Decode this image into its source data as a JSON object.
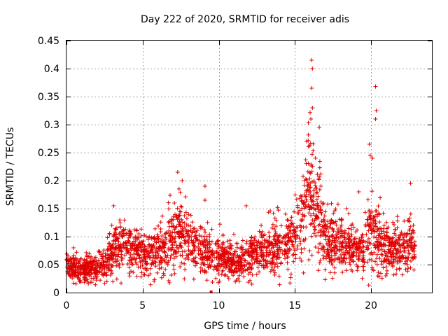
{
  "chart_data": {
    "type": "scatter",
    "title": "Day 222 of 2020, SRMTID for receiver adis",
    "xlabel": "GPS time / hours",
    "ylabel": "SRMTID / TECUs",
    "xlim": [
      0,
      24
    ],
    "ylim": [
      0,
      0.45
    ],
    "xticks": [
      0,
      5,
      10,
      15,
      20
    ],
    "xtick_labels": [
      "0",
      "5",
      "10",
      "15",
      "20"
    ],
    "yticks": [
      0,
      0.05,
      0.1,
      0.15,
      0.2,
      0.25,
      0.3,
      0.35,
      0.4,
      0.45
    ],
    "ytick_labels": [
      "0",
      "0.05",
      "0.1",
      "0.15",
      "0.2",
      "0.25",
      "0.3",
      "0.35",
      "0.4",
      "0.45"
    ],
    "grid": true,
    "marker": "plus",
    "color": "#e00000",
    "series": [
      {
        "name": "SRMTID",
        "profile": [
          [
            0.0,
            0.05
          ],
          [
            0.5,
            0.045
          ],
          [
            1.0,
            0.04
          ],
          [
            1.5,
            0.045
          ],
          [
            2.0,
            0.045
          ],
          [
            2.5,
            0.05
          ],
          [
            3.0,
            0.075
          ],
          [
            3.5,
            0.085
          ],
          [
            4.0,
            0.08
          ],
          [
            4.5,
            0.075
          ],
          [
            5.0,
            0.07
          ],
          [
            5.5,
            0.07
          ],
          [
            6.0,
            0.075
          ],
          [
            6.5,
            0.085
          ],
          [
            7.0,
            0.1
          ],
          [
            7.5,
            0.11
          ],
          [
            8.0,
            0.095
          ],
          [
            8.5,
            0.08
          ],
          [
            9.0,
            0.075
          ],
          [
            9.5,
            0.07
          ],
          [
            10.0,
            0.065
          ],
          [
            10.5,
            0.06
          ],
          [
            11.0,
            0.055
          ],
          [
            11.5,
            0.06
          ],
          [
            12.0,
            0.065
          ],
          [
            12.5,
            0.07
          ],
          [
            13.0,
            0.075
          ],
          [
            13.5,
            0.08
          ],
          [
            14.0,
            0.085
          ],
          [
            14.5,
            0.09
          ],
          [
            15.0,
            0.1
          ],
          [
            15.5,
            0.14
          ],
          [
            16.0,
            0.19
          ],
          [
            16.5,
            0.15
          ],
          [
            17.0,
            0.1
          ],
          [
            17.5,
            0.09
          ],
          [
            18.0,
            0.085
          ],
          [
            18.5,
            0.08
          ],
          [
            19.0,
            0.075
          ],
          [
            19.5,
            0.075
          ],
          [
            20.0,
            0.11
          ],
          [
            20.5,
            0.1
          ],
          [
            21.0,
            0.08
          ],
          [
            21.5,
            0.075
          ],
          [
            22.0,
            0.08
          ],
          [
            22.5,
            0.085
          ],
          [
            22.9,
            0.08
          ]
        ],
        "outliers": [
          [
            7.3,
            0.215
          ],
          [
            7.6,
            0.2
          ],
          [
            9.1,
            0.19
          ],
          [
            9.1,
            0.165
          ],
          [
            16.1,
            0.415
          ],
          [
            16.15,
            0.4
          ],
          [
            16.1,
            0.365
          ],
          [
            16.15,
            0.33
          ],
          [
            16.05,
            0.31
          ],
          [
            16.6,
            0.295
          ],
          [
            20.3,
            0.368
          ],
          [
            20.35,
            0.325
          ],
          [
            20.3,
            0.31
          ],
          [
            19.9,
            0.265
          ],
          [
            19.95,
            0.245
          ],
          [
            20.1,
            0.24
          ],
          [
            22.6,
            0.195
          ],
          [
            11.8,
            0.155
          ],
          [
            3.1,
            0.155
          ],
          [
            18.4,
            0.15
          ],
          [
            19.2,
            0.18
          ]
        ],
        "min_marker": [
          9.5,
          0.0
        ]
      }
    ]
  }
}
